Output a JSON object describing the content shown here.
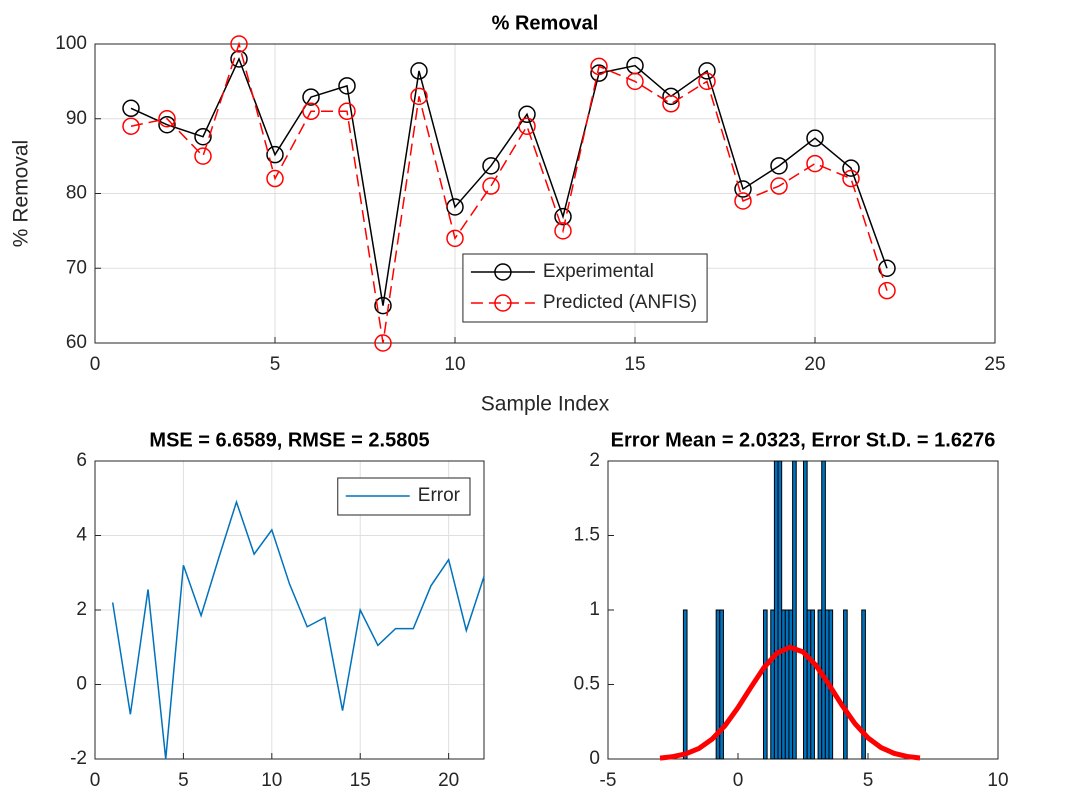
{
  "chart_data": [
    {
      "type": "line",
      "title": "% Removal",
      "xlabel": "Sample Index",
      "ylabel": "% Removal",
      "x": [
        1,
        2,
        3,
        4,
        5,
        6,
        7,
        8,
        9,
        10,
        11,
        12,
        13,
        14,
        15,
        16,
        17,
        18,
        19,
        20,
        21,
        22
      ],
      "series": [
        {
          "name": "Experimental",
          "color": "#000000",
          "marker": "circle",
          "line_style": "solid",
          "values": [
            91.4,
            89.2,
            87.6,
            98,
            85.2,
            92.9,
            94.4,
            65,
            96.4,
            78.2,
            83.7,
            90.6,
            76.9,
            96.1,
            97.1,
            93,
            96.4,
            80.6,
            83.7,
            87.4,
            83.4,
            70
          ]
        },
        {
          "name": "Predicted (ANFIS)",
          "color": "#ff0000",
          "marker": "circle",
          "line_style": "dashed",
          "values": [
            89,
            90,
            85,
            100,
            82,
            91,
            91,
            60,
            93,
            74,
            81,
            89,
            75,
            97,
            95,
            92,
            95,
            79,
            81,
            84,
            82,
            67
          ]
        }
      ],
      "xlim": [
        0,
        25
      ],
      "xticks": [
        0,
        5,
        10,
        15,
        20,
        25
      ],
      "ylim": [
        60,
        100
      ],
      "yticks": [
        60,
        70,
        80,
        90,
        100
      ],
      "grid": true,
      "legend": "south"
    },
    {
      "type": "line",
      "title": "MSE = 6.6589, RMSE = 2.5805",
      "x": [
        1,
        2,
        3,
        4,
        5,
        6,
        7,
        8,
        9,
        10,
        11,
        12,
        13,
        14,
        15,
        16,
        17,
        18,
        19,
        20,
        21,
        22
      ],
      "series": [
        {
          "name": "Error",
          "color": "#0072bd",
          "marker": "none",
          "line_style": "solid",
          "values": [
            2.2,
            -0.8,
            2.55,
            -2,
            3.2,
            1.85,
            3.4,
            4.9,
            3.5,
            4.15,
            2.7,
            1.55,
            1.8,
            -0.7,
            2.0,
            1.05,
            1.5,
            1.5,
            2.65,
            3.35,
            1.45,
            2.9
          ]
        }
      ],
      "xlim": [
        0,
        22
      ],
      "xticks": [
        0,
        5,
        10,
        15,
        20
      ],
      "ylim": [
        -2,
        6
      ],
      "yticks": [
        -2,
        0,
        2,
        4,
        6
      ],
      "grid": true,
      "legend": "northeast"
    },
    {
      "type": "histogram",
      "title": "Error Mean = 2.0323, Error St.D. = 1.6276",
      "bins": [
        -2.1,
        -1.96,
        -1.82,
        -1.68,
        -1.54,
        -1.4,
        -1.26,
        -1.12,
        -0.98,
        -0.84,
        -0.7,
        -0.56,
        -0.42,
        -0.28,
        -0.14,
        0,
        0.14,
        0.28,
        0.42,
        0.56,
        0.7,
        0.84,
        0.98,
        1.12,
        1.26,
        1.4,
        1.54,
        1.68,
        1.82,
        1.96,
        2.1,
        2.24,
        2.38,
        2.52,
        2.66,
        2.8,
        2.94,
        3.08,
        3.22,
        3.36,
        3.5,
        3.64,
        3.78,
        3.92,
        4.06,
        4.2,
        4.34,
        4.48,
        4.62,
        4.76,
        4.9
      ],
      "counts": [
        1,
        0,
        0,
        0,
        0,
        0,
        0,
        0,
        0,
        1,
        1,
        0,
        0,
        0,
        0,
        0,
        0,
        0,
        0,
        0,
        0,
        0,
        1,
        0,
        1,
        2,
        2,
        1,
        1,
        1,
        2,
        0,
        0,
        2,
        1,
        1,
        0,
        1,
        2,
        1,
        1,
        0,
        0,
        0,
        1,
        0,
        0,
        0,
        0,
        1
      ],
      "color": "#0072bd",
      "curve": {
        "color": "#ff0000",
        "x": [
          -3,
          -2.5,
          -2,
          -1.5,
          -1,
          -0.5,
          0,
          0.5,
          1,
          1.5,
          2,
          2.5,
          3,
          3.5,
          4,
          4.5,
          5,
          5.5,
          6,
          6.5,
          7
        ],
        "values": [
          0.006,
          0.016,
          0.035,
          0.071,
          0.133,
          0.224,
          0.345,
          0.482,
          0.614,
          0.711,
          0.75,
          0.719,
          0.628,
          0.499,
          0.361,
          0.237,
          0.142,
          0.077,
          0.038,
          0.017,
          0.007
        ]
      },
      "xlim": [
        -5,
        10
      ],
      "xticks": [
        -5,
        0,
        5,
        10
      ],
      "ylim": [
        0,
        2
      ],
      "yticks": [
        0,
        0.5,
        1,
        1.5,
        2
      ],
      "grid": false
    }
  ]
}
